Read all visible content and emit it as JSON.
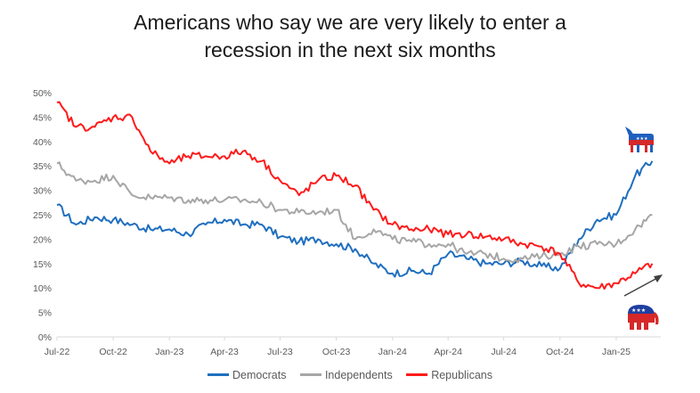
{
  "chart_data": {
    "type": "line",
    "title_line1": "Americans who say we are very likely to enter a",
    "title_line2": "recession in the next six months",
    "xlabel": "",
    "ylabel": "",
    "x_ticks": [
      "Jul-22",
      "Oct-22",
      "Jan-23",
      "Apr-23",
      "Jul-23",
      "Oct-23",
      "Jan-24",
      "Apr-24",
      "Jul-24",
      "Oct-24",
      "Jan-25"
    ],
    "y_ticks": [
      "0%",
      "5%",
      "10%",
      "15%",
      "20%",
      "25%",
      "30%",
      "35%",
      "40%",
      "45%",
      "50%"
    ],
    "ylim": [
      0,
      50
    ],
    "grid": false,
    "legend_position": "bottom",
    "x_dates": [
      "2022-07-01",
      "2022-08-01",
      "2022-09-01",
      "2022-10-01",
      "2022-11-01",
      "2022-12-01",
      "2023-01-01",
      "2023-02-01",
      "2023-03-01",
      "2023-04-01",
      "2023-05-01",
      "2023-06-01",
      "2023-07-01",
      "2023-08-01",
      "2023-09-01",
      "2023-10-01",
      "2023-11-01",
      "2023-12-01",
      "2024-01-01",
      "2024-02-01",
      "2024-03-01",
      "2024-04-01",
      "2024-05-01",
      "2024-06-01",
      "2024-07-01",
      "2024-08-01",
      "2024-09-01",
      "2024-10-01",
      "2024-11-01",
      "2024-12-01",
      "2025-01-01",
      "2025-02-01",
      "2025-03-01"
    ],
    "series": [
      {
        "name": "Democrats",
        "color": "#1f6fbf",
        "values": [
          27,
          23,
          24.5,
          24,
          23,
          22,
          22,
          21,
          23,
          24,
          23,
          23,
          20.5,
          19.5,
          20,
          19,
          18,
          15,
          13,
          13.5,
          13,
          17,
          16,
          15,
          15,
          15.5,
          14.5,
          14,
          20,
          24,
          25,
          33,
          36
        ]
      },
      {
        "name": "Independents",
        "color": "#a6a6a6",
        "values": [
          35.5,
          32,
          32,
          33,
          29,
          28.5,
          28.5,
          28,
          28,
          28,
          28,
          27.5,
          26,
          25.5,
          25.5,
          26,
          20,
          22,
          20,
          19.5,
          19,
          19,
          17,
          17,
          16,
          16,
          16.5,
          17,
          18.5,
          19,
          19,
          22,
          25
        ]
      },
      {
        "name": "Republicans",
        "color": "#ff1a1a",
        "values": [
          48,
          43,
          43,
          45,
          45,
          38,
          35.5,
          37,
          37,
          37,
          38,
          36,
          32,
          29,
          32,
          33,
          31,
          26,
          23,
          22,
          22,
          21,
          21,
          20.5,
          20,
          19,
          18.5,
          17,
          11,
          10,
          11,
          13,
          15
        ]
      }
    ],
    "annotations": [
      "democrat-donkey-logo",
      "republican-elephant-logo",
      "trend-arrow"
    ]
  }
}
